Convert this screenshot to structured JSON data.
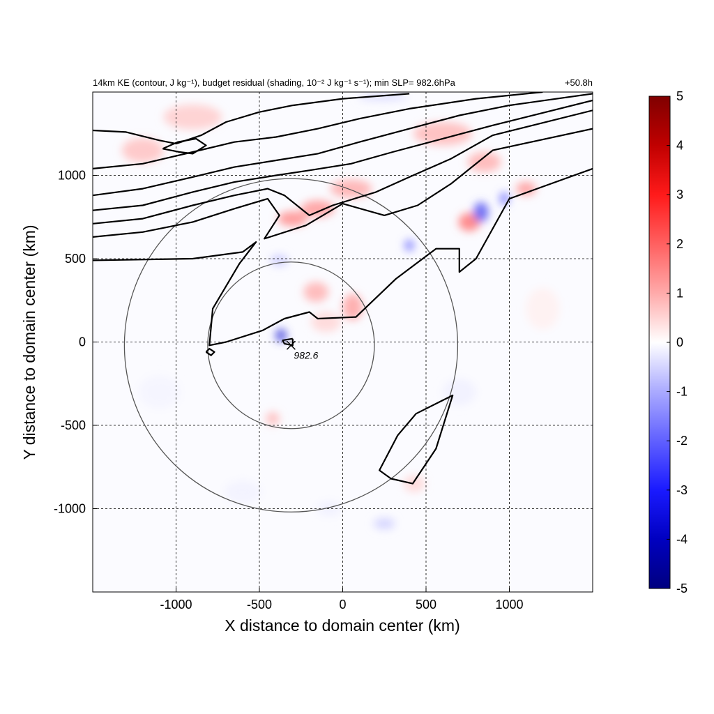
{
  "chart_data": {
    "type": "heatmap",
    "title_left": "14km KE (contour, J kg⁻¹), budget residual (shading, 10⁻² J kg⁻¹ s⁻¹); min SLP= 982.6hPa",
    "title_right": "+50.8h",
    "xlabel": "X distance to domain center (km)",
    "ylabel": "Y distance to domain center (km)",
    "xlim": [
      -1500,
      1500
    ],
    "ylim": [
      -1500,
      1500
    ],
    "xticks": [
      -1000,
      -500,
      0,
      500,
      1000
    ],
    "yticks": [
      -1000,
      -500,
      0,
      500,
      1000
    ],
    "grid": true,
    "colorbar": {
      "min": -5,
      "max": 5,
      "ticks": [
        5,
        4,
        3,
        2,
        1,
        0,
        -1,
        -2,
        -3,
        -4,
        -5
      ],
      "colormap": "blue-white-red",
      "low_color": "#00007f",
      "mid_color": "#ffffff",
      "high_color": "#7f0000"
    },
    "storm_center": {
      "x": -310,
      "y": -20,
      "min_slp_label": "982.6"
    },
    "range_rings_km": [
      500,
      1000
    ],
    "contour_lines": [
      [
        [
          -1500,
          490
        ],
        [
          -900,
          500
        ],
        [
          -600,
          540
        ],
        [
          -520,
          600
        ],
        [
          -620,
          470
        ],
        [
          -780,
          200
        ],
        [
          -800,
          -20
        ],
        [
          -700,
          0
        ],
        [
          -480,
          70
        ],
        [
          -350,
          140
        ],
        [
          -200,
          180
        ],
        [
          -150,
          140
        ],
        [
          80,
          150
        ],
        [
          320,
          380
        ],
        [
          560,
          560
        ],
        [
          700,
          560
        ],
        [
          700,
          420
        ],
        [
          800,
          500
        ],
        [
          1000,
          860
        ],
        [
          1500,
          1040
        ]
      ],
      [
        [
          -1500,
          630
        ],
        [
          -1200,
          660
        ],
        [
          -900,
          720
        ],
        [
          -650,
          800
        ],
        [
          -450,
          860
        ],
        [
          -380,
          760
        ],
        [
          -470,
          620
        ],
        [
          -220,
          700
        ],
        [
          0,
          830
        ],
        [
          250,
          760
        ],
        [
          450,
          820
        ],
        [
          650,
          950
        ],
        [
          900,
          1150
        ],
        [
          1500,
          1280
        ]
      ],
      [
        [
          -1500,
          710
        ],
        [
          -1200,
          740
        ],
        [
          -900,
          820
        ],
        [
          -650,
          880
        ],
        [
          -450,
          920
        ],
        [
          -350,
          880
        ],
        [
          -200,
          760
        ],
        [
          -60,
          820
        ],
        [
          200,
          900
        ],
        [
          400,
          990
        ],
        [
          650,
          1100
        ],
        [
          900,
          1240
        ],
        [
          1500,
          1390
        ]
      ],
      [
        [
          -1500,
          790
        ],
        [
          -1200,
          820
        ],
        [
          -900,
          900
        ],
        [
          -650,
          960
        ],
        [
          -400,
          1000
        ],
        [
          -200,
          1030
        ],
        [
          50,
          1070
        ],
        [
          300,
          1140
        ],
        [
          600,
          1220
        ],
        [
          900,
          1300
        ],
        [
          1500,
          1450
        ]
      ],
      [
        [
          -1500,
          880
        ],
        [
          -1200,
          920
        ],
        [
          -900,
          990
        ],
        [
          -650,
          1050
        ],
        [
          -400,
          1090
        ],
        [
          -150,
          1130
        ],
        [
          100,
          1200
        ],
        [
          400,
          1280
        ],
        [
          700,
          1360
        ],
        [
          1000,
          1420
        ],
        [
          1500,
          1490
        ]
      ],
      [
        [
          -1500,
          1040
        ],
        [
          -1200,
          1070
        ],
        [
          -900,
          1140
        ],
        [
          -650,
          1200
        ],
        [
          -400,
          1230
        ],
        [
          -150,
          1280
        ],
        [
          100,
          1340
        ],
        [
          400,
          1400
        ],
        [
          800,
          1460
        ],
        [
          1200,
          1500
        ]
      ],
      [
        [
          -1500,
          1270
        ],
        [
          -1300,
          1260
        ],
        [
          -1100,
          1210
        ],
        [
          -1000,
          1190
        ],
        [
          -850,
          1240
        ],
        [
          -700,
          1320
        ],
        [
          -500,
          1380
        ],
        [
          -300,
          1420
        ],
        [
          0,
          1460
        ],
        [
          400,
          1490
        ]
      ],
      [
        [
          -1080,
          1160
        ],
        [
          -980,
          1140
        ],
        [
          -900,
          1130
        ],
        [
          -820,
          1180
        ],
        [
          -880,
          1220
        ],
        [
          -990,
          1200
        ],
        [
          -1080,
          1160
        ]
      ],
      [
        [
          -300,
          20
        ],
        [
          -360,
          10
        ],
        [
          -350,
          -10
        ],
        [
          -300,
          -20
        ],
        [
          -300,
          20
        ]
      ],
      [
        [
          -820,
          -60
        ],
        [
          -790,
          -80
        ],
        [
          -770,
          -60
        ],
        [
          -800,
          -40
        ],
        [
          -820,
          -60
        ]
      ],
      [
        [
          600,
          -350
        ],
        [
          660,
          -320
        ],
        [
          560,
          -640
        ],
        [
          420,
          -850
        ],
        [
          290,
          -820
        ],
        [
          220,
          -770
        ],
        [
          330,
          -560
        ],
        [
          440,
          -430
        ],
        [
          600,
          -350
        ]
      ]
    ],
    "residual_features": [
      {
        "x": -1200,
        "y": 1150,
        "w": 250,
        "h": 150,
        "value": 1.2
      },
      {
        "x": -900,
        "y": 1350,
        "w": 350,
        "h": 150,
        "value": 1.0
      },
      {
        "x": -300,
        "y": 740,
        "w": 180,
        "h": 90,
        "value": 2.2
      },
      {
        "x": -150,
        "y": 800,
        "w": 200,
        "h": 100,
        "value": 2.0
      },
      {
        "x": 50,
        "y": 920,
        "w": 250,
        "h": 110,
        "value": 1.6
      },
      {
        "x": -160,
        "y": 300,
        "w": 150,
        "h": 120,
        "value": 1.5
      },
      {
        "x": 60,
        "y": 210,
        "w": 120,
        "h": 160,
        "value": 1.8
      },
      {
        "x": -100,
        "y": 120,
        "w": 180,
        "h": 120,
        "value": 0.8
      },
      {
        "x": 600,
        "y": 1250,
        "w": 350,
        "h": 140,
        "value": 1.4
      },
      {
        "x": 850,
        "y": 1080,
        "w": 200,
        "h": 120,
        "value": 1.5
      },
      {
        "x": 760,
        "y": 720,
        "w": 130,
        "h": 110,
        "value": 2.6
      },
      {
        "x": 1100,
        "y": 920,
        "w": 120,
        "h": 80,
        "value": 2.0
      },
      {
        "x": -420,
        "y": -460,
        "w": 80,
        "h": 80,
        "value": 1.4
      },
      {
        "x": 430,
        "y": -850,
        "w": 130,
        "h": 100,
        "value": 0.8
      },
      {
        "x": 830,
        "y": 780,
        "w": 90,
        "h": 120,
        "value": -3.2
      },
      {
        "x": 970,
        "y": 860,
        "w": 60,
        "h": 80,
        "value": -2.5
      },
      {
        "x": -370,
        "y": 40,
        "w": 70,
        "h": 80,
        "value": -3.5
      },
      {
        "x": 400,
        "y": 580,
        "w": 60,
        "h": 70,
        "value": -2.5
      },
      {
        "x": -380,
        "y": 490,
        "w": 110,
        "h": 70,
        "value": -1.0
      },
      {
        "x": 240,
        "y": 1470,
        "w": 300,
        "h": 40,
        "value": -0.8
      },
      {
        "x": 250,
        "y": -1090,
        "w": 130,
        "h": 70,
        "value": -0.9
      },
      {
        "x": -80,
        "y": -1000,
        "w": 150,
        "h": 90,
        "value": -0.3
      },
      {
        "x": 700,
        "y": -300,
        "w": 200,
        "h": 160,
        "value": -0.3
      },
      {
        "x": -600,
        "y": -900,
        "w": 220,
        "h": 140,
        "value": -0.25
      },
      {
        "x": 1200,
        "y": 200,
        "w": 200,
        "h": 250,
        "value": 0.3
      },
      {
        "x": -1100,
        "y": -300,
        "w": 250,
        "h": 200,
        "value": -0.2
      }
    ]
  }
}
